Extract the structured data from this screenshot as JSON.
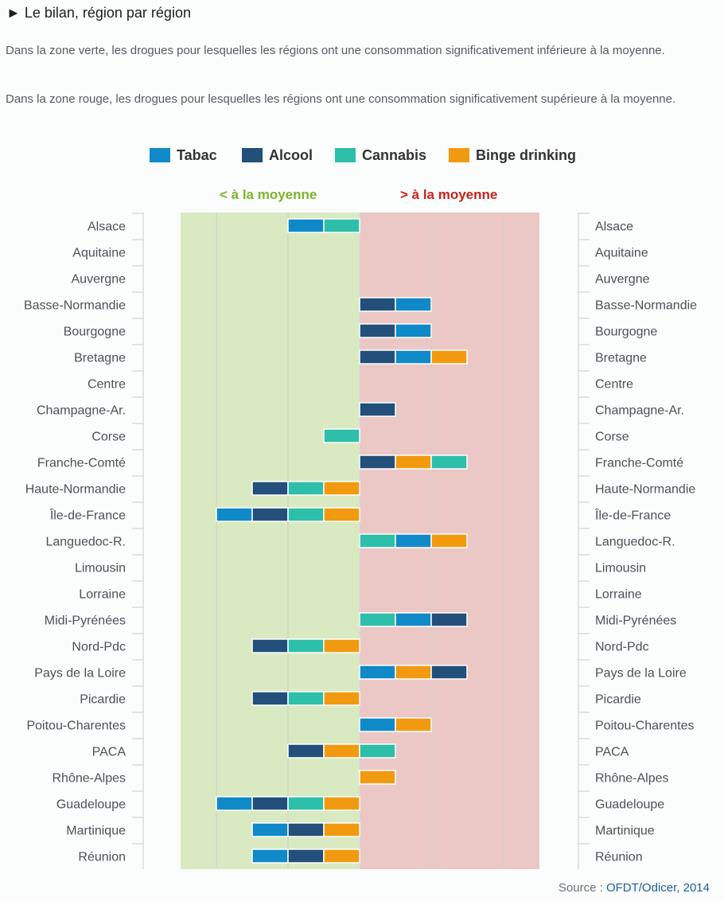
{
  "header": {
    "title": "► Le bilan, région par région",
    "para_green": "Dans la zone verte, les drogues pour lesquelles les régions ont une consommation significativement inférieure à la moyenne.",
    "para_red": "Dans la zone rouge, les drogues pour lesquelles les régions ont une consommation significativement supérieure à la moyenne."
  },
  "legend": [
    {
      "label": "Tabac",
      "color": "#1089c9"
    },
    {
      "label": "Alcool",
      "color": "#22507a"
    },
    {
      "label": "Cannabis",
      "color": "#2ebfaa"
    },
    {
      "label": "Binge drinking",
      "color": "#f29a0f"
    }
  ],
  "zones": {
    "below": {
      "label": "< à la moyenne",
      "color": "#7cb52a",
      "fill": "#d9eac3"
    },
    "above": {
      "label": "> à la moyenne",
      "color": "#c9221c",
      "fill": "#ebc8c6"
    }
  },
  "source": {
    "prefix": "Source : ",
    "org": "OFDT/Odicer, 2014"
  },
  "chart_data": {
    "type": "bar",
    "subtype": "diverging-stacked",
    "drugs": [
      "Tabac",
      "Alcool",
      "Cannabis",
      "Binge drinking"
    ],
    "colors": {
      "Tabac": "#1089c9",
      "Alcool": "#22507a",
      "Cannabis": "#2ebfaa",
      "Binge drinking": "#f29a0f"
    },
    "categories": [
      "Alsace",
      "Aquitaine",
      "Auvergne",
      "Basse-Normandie",
      "Bourgogne",
      "Bretagne",
      "Centre",
      "Champagne-Ar.",
      "Corse",
      "Franche-Comté",
      "Haute-Normandie",
      "Île-de-France",
      "Languedoc-R.",
      "Limousin",
      "Lorraine",
      "Midi-Pyrénées",
      "Nord-Pdc",
      "Pays de la Loire",
      "Picardie",
      "Poitou-Charentes",
      "PACA",
      "Rhône-Alpes",
      "Guadeloupe",
      "Martinique",
      "Réunion"
    ],
    "below": [
      [
        "Tabac",
        "Cannabis"
      ],
      [],
      [],
      [],
      [],
      [],
      [],
      [],
      [
        "Cannabis"
      ],
      [],
      [
        "Alcool",
        "Cannabis",
        "Binge drinking"
      ],
      [
        "Tabac",
        "Alcool",
        "Cannabis",
        "Binge drinking"
      ],
      [],
      [],
      [],
      [],
      [
        "Alcool",
        "Cannabis",
        "Binge drinking"
      ],
      [],
      [
        "Alcool",
        "Cannabis",
        "Binge drinking"
      ],
      [],
      [
        "Alcool",
        "Binge drinking"
      ],
      [],
      [
        "Tabac",
        "Alcool",
        "Cannabis",
        "Binge drinking"
      ],
      [
        "Tabac",
        "Alcool",
        "Binge drinking"
      ],
      [
        "Tabac",
        "Alcool",
        "Binge drinking"
      ]
    ],
    "above": [
      [],
      [],
      [],
      [
        "Alcool",
        "Tabac"
      ],
      [
        "Alcool",
        "Tabac"
      ],
      [
        "Alcool",
        "Tabac",
        "Binge drinking"
      ],
      [],
      [
        "Alcool"
      ],
      [],
      [
        "Alcool",
        "Binge drinking",
        "Cannabis"
      ],
      [],
      [],
      [
        "Cannabis",
        "Tabac",
        "Binge drinking"
      ],
      [],
      [],
      [
        "Cannabis",
        "Tabac",
        "Alcool"
      ],
      [],
      [
        "Tabac",
        "Binge drinking",
        "Alcool"
      ],
      [],
      [
        "Tabac",
        "Binge drinking"
      ],
      [
        "Cannabis"
      ],
      [
        "Binge drinking"
      ],
      [],
      [],
      []
    ],
    "legend_position": "top-center",
    "grid": true
  }
}
